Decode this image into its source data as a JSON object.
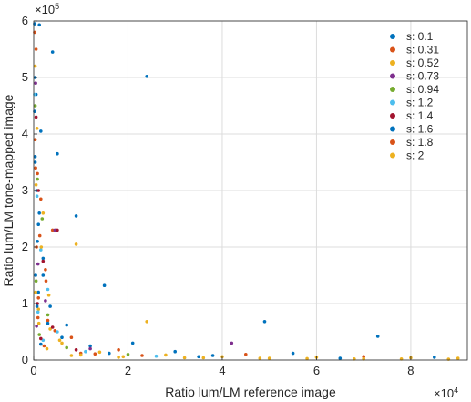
{
  "chart_data": {
    "type": "scatter",
    "title": "",
    "xlabel": "Ratio lum/LM reference image",
    "ylabel": "Ratio lum/LM tone-mapped image",
    "x_exponent_label": "×10",
    "x_exponent_power": "4",
    "y_exponent_label": "×10",
    "y_exponent_power": "5",
    "xlim": [
      0,
      92000
    ],
    "ylim": [
      0,
      600000
    ],
    "x_ticks": [
      0,
      20000,
      40000,
      60000,
      80000
    ],
    "x_tick_labels": [
      "0",
      "2",
      "4",
      "6",
      "8"
    ],
    "y_ticks": [
      0,
      100000,
      200000,
      300000,
      400000,
      500000,
      600000
    ],
    "y_tick_labels": [
      "0",
      "1",
      "2",
      "3",
      "4",
      "5",
      "6"
    ],
    "grid": true,
    "legend_position": "top-right",
    "series": [
      {
        "name": "s: 0.1",
        "color": "#0072BD",
        "points": [
          [
            200,
            595000
          ],
          [
            1200,
            593000
          ],
          [
            4000,
            545000
          ],
          [
            24000,
            502000
          ],
          [
            300,
            500000
          ],
          [
            500,
            470000
          ],
          [
            200,
            440000
          ],
          [
            1500,
            405000
          ],
          [
            5000,
            365000
          ],
          [
            300,
            350000
          ],
          [
            600,
            300000
          ],
          [
            1200,
            260000
          ],
          [
            9000,
            255000
          ],
          [
            800,
            210000
          ],
          [
            2000,
            180000
          ],
          [
            400,
            150000
          ],
          [
            15000,
            132000
          ],
          [
            1000,
            120000
          ],
          [
            3500,
            95000
          ],
          [
            7000,
            62000
          ],
          [
            49000,
            68000
          ],
          [
            73000,
            42000
          ],
          [
            12000,
            25000
          ],
          [
            30000,
            15000
          ],
          [
            55000,
            12000
          ],
          [
            85000,
            5000
          ],
          [
            21000,
            30000
          ],
          [
            38000,
            8000
          ]
        ]
      },
      {
        "name": "s: 0.31",
        "color": "#D95319",
        "points": [
          [
            200,
            580000
          ],
          [
            500,
            550000
          ],
          [
            300,
            390000
          ],
          [
            800,
            330000
          ],
          [
            1500,
            285000
          ],
          [
            4000,
            230000
          ],
          [
            600,
            200000
          ],
          [
            2500,
            160000
          ],
          [
            1000,
            110000
          ],
          [
            3000,
            70000
          ],
          [
            8000,
            40000
          ],
          [
            18000,
            18000
          ],
          [
            45000,
            10000
          ],
          [
            70000,
            6000
          ],
          [
            10000,
            12000
          ]
        ]
      },
      {
        "name": "s: 0.52",
        "color": "#EDB120",
        "points": [
          [
            300,
            520000
          ],
          [
            700,
            410000
          ],
          [
            2000,
            260000
          ],
          [
            9000,
            205000
          ],
          [
            400,
            120000
          ],
          [
            24000,
            68000
          ],
          [
            1000,
            90000
          ],
          [
            3500,
            55000
          ],
          [
            6000,
            30000
          ],
          [
            14000,
            14000
          ],
          [
            28000,
            9000
          ],
          [
            40000,
            6000
          ],
          [
            60000,
            5000
          ],
          [
            80000,
            4000
          ],
          [
            90000,
            3000
          ],
          [
            50000,
            3000
          ],
          [
            32000,
            4000
          ],
          [
            18000,
            5000
          ],
          [
            8000,
            8000
          ],
          [
            70000,
            2000
          ]
        ]
      },
      {
        "name": "s: 0.73",
        "color": "#7E2F8E",
        "points": [
          [
            400,
            490000
          ],
          [
            4500,
            230000
          ],
          [
            900,
            170000
          ],
          [
            2500,
            105000
          ],
          [
            42000,
            30000
          ],
          [
            600,
            60000
          ],
          [
            12000,
            20000
          ]
        ]
      },
      {
        "name": "s: 0.94",
        "color": "#77AC30",
        "points": [
          [
            300,
            450000
          ],
          [
            800,
            320000
          ],
          [
            1800,
            250000
          ],
          [
            500,
            140000
          ],
          [
            3000,
            80000
          ],
          [
            1200,
            45000
          ],
          [
            7000,
            22000
          ],
          [
            20000,
            10000
          ]
        ]
      },
      {
        "name": "s: 1.2",
        "color": "#4DBEEE",
        "points": [
          [
            200,
            470000
          ],
          [
            700,
            290000
          ],
          [
            1500,
            195000
          ],
          [
            3000,
            125000
          ],
          [
            900,
            85000
          ],
          [
            5000,
            50000
          ],
          [
            2000,
            35000
          ],
          [
            11000,
            15000
          ],
          [
            26000,
            7000
          ]
        ]
      },
      {
        "name": "s: 1.4",
        "color": "#A2142F",
        "points": [
          [
            500,
            430000
          ],
          [
            1000,
            300000
          ],
          [
            5000,
            230000
          ],
          [
            2000,
            175000
          ],
          [
            800,
            100000
          ],
          [
            4000,
            58000
          ],
          [
            1500,
            38000
          ],
          [
            9000,
            18000
          ]
        ]
      },
      {
        "name": "s: 1.6",
        "color": "#0072BD",
        "points": [
          [
            300,
            360000
          ],
          [
            1000,
            240000
          ],
          [
            2000,
            150000
          ],
          [
            700,
            95000
          ],
          [
            3000,
            65000
          ],
          [
            6000,
            40000
          ],
          [
            1500,
            28000
          ],
          [
            16000,
            12000
          ],
          [
            35000,
            6000
          ],
          [
            65000,
            3000
          ]
        ]
      },
      {
        "name": "s: 1.8",
        "color": "#D95319",
        "points": [
          [
            400,
            340000
          ],
          [
            1300,
            220000
          ],
          [
            2600,
            140000
          ],
          [
            900,
            75000
          ],
          [
            4500,
            52000
          ],
          [
            2200,
            25000
          ],
          [
            13000,
            11000
          ],
          [
            23000,
            8000
          ]
        ]
      },
      {
        "name": "s: 2",
        "color": "#EDB120",
        "points": [
          [
            500,
            310000
          ],
          [
            1600,
            200000
          ],
          [
            3200,
            115000
          ],
          [
            1100,
            65000
          ],
          [
            5500,
            35000
          ],
          [
            2800,
            20000
          ],
          [
            10000,
            9000
          ],
          [
            19000,
            6000
          ],
          [
            36000,
            4000
          ],
          [
            48000,
            3000
          ],
          [
            58000,
            2500
          ],
          [
            68000,
            2000
          ],
          [
            78000,
            2000
          ],
          [
            88000,
            1500
          ]
        ]
      }
    ]
  }
}
